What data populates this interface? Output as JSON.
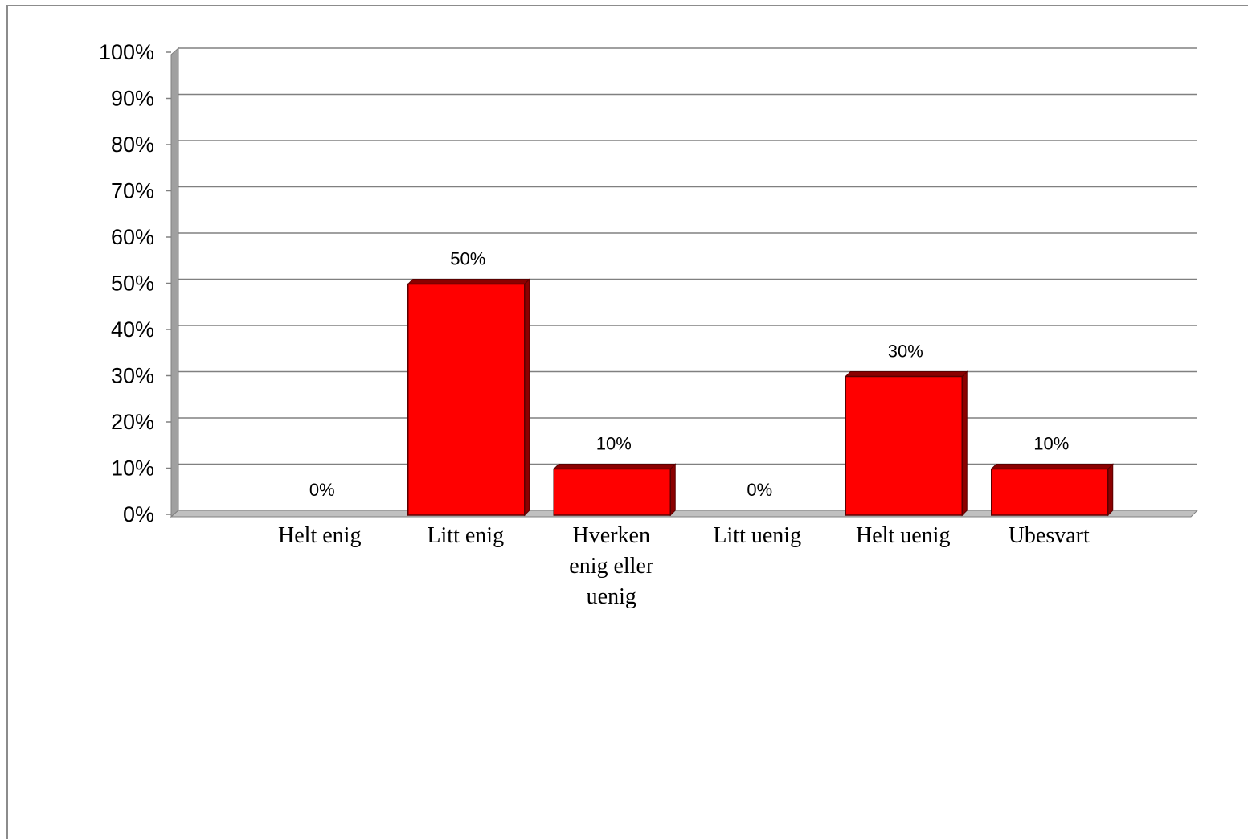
{
  "chart_data": {
    "type": "bar",
    "categories": [
      "Helt enig",
      "Litt enig",
      "Hverken enig eller uenig",
      "Litt uenig",
      "Helt uenig",
      "Ubesvart"
    ],
    "category_lines": [
      [
        "Helt enig"
      ],
      [
        "Litt enig"
      ],
      [
        "Hverken",
        "enig eller",
        "uenig"
      ],
      [
        "Litt uenig"
      ],
      [
        "Helt uenig"
      ],
      [
        "Ubesvart"
      ]
    ],
    "values": [
      0,
      50,
      10,
      0,
      30,
      10
    ],
    "data_labels": [
      "0%",
      "50%",
      "10%",
      "0%",
      "30%",
      "10%"
    ],
    "y_ticks": [
      "0%",
      "10%",
      "20%",
      "30%",
      "40%",
      "50%",
      "60%",
      "70%",
      "80%",
      "90%",
      "100%"
    ],
    "ylim": [
      0,
      100
    ],
    "title": "",
    "xlabel": "",
    "ylabel": "",
    "grid": true,
    "legend": "none",
    "bar_color": "#ff0000",
    "bar_edge_color": "#5a0000",
    "bar_side_color": "#8b0000",
    "gridline_color": "#808080",
    "frame_color": "#8c8c8c"
  }
}
